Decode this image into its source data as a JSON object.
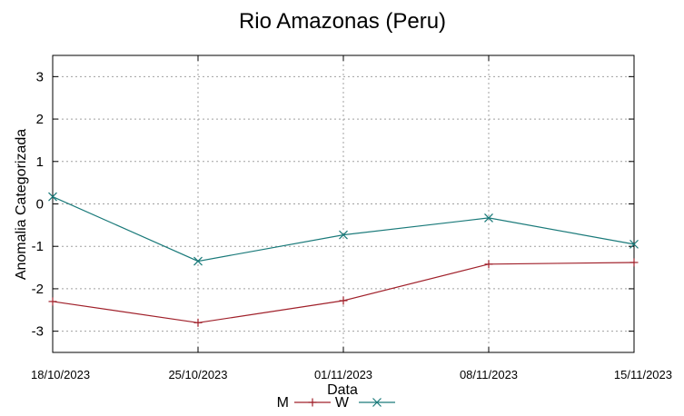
{
  "chart_data": {
    "type": "line",
    "title": "Rio Amazonas (Peru)",
    "xlabel": "Data",
    "ylabel": "Anomalia Categorizada",
    "categories": [
      "18/10/2023",
      "25/10/2023",
      "01/11/2023",
      "08/11/2023",
      "15/11/2023"
    ],
    "yticks": [
      "3",
      "2",
      "1",
      "0",
      "-1",
      "-2",
      "-3"
    ],
    "ylim": [
      -3.5,
      3.5
    ],
    "grid": true,
    "legend_position": "bottom",
    "series": [
      {
        "name": "M",
        "color": "#a0202a",
        "marker": "plus",
        "values": [
          -2.3,
          -2.8,
          -2.28,
          -1.42,
          -1.38
        ]
      },
      {
        "name": "W",
        "color": "#1a7a7a",
        "marker": "cross",
        "values": [
          0.17,
          -1.35,
          -0.73,
          -0.33,
          -0.95
        ]
      }
    ]
  }
}
